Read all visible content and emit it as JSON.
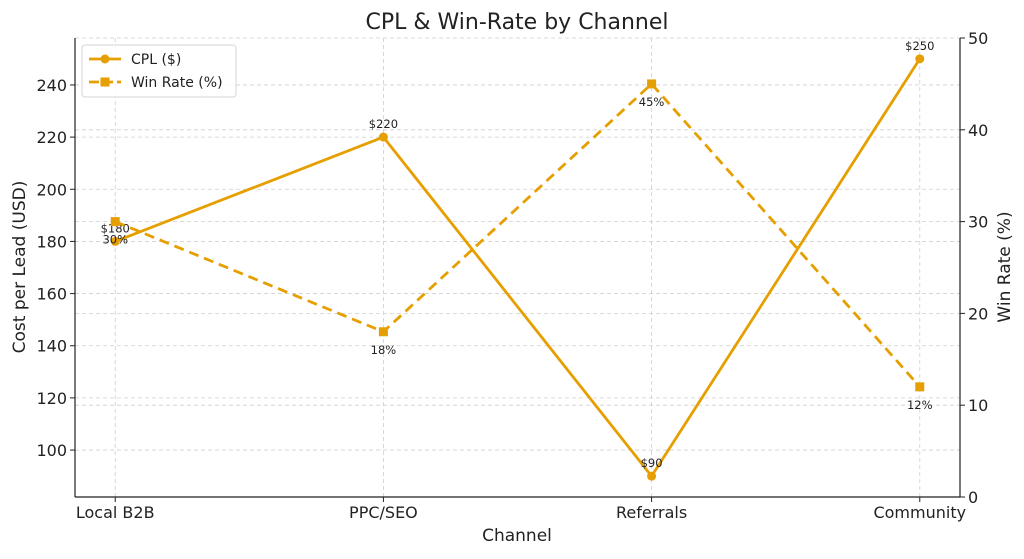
{
  "chart_data": {
    "type": "line",
    "title": "CPL & Win-Rate by Channel",
    "xlabel": "Channel",
    "ylabel": "Cost per Lead (USD)",
    "y2label": "Win Rate (%)",
    "categories": [
      "Local B2B",
      "PPC/SEO",
      "Referrals",
      "Community"
    ],
    "ylim": [
      82,
      258
    ],
    "y2lim": [
      0,
      50
    ],
    "yticks": [
      100,
      120,
      140,
      160,
      180,
      200,
      220,
      240
    ],
    "y2ticks": [
      0,
      10,
      20,
      30,
      40,
      50
    ],
    "grid": true,
    "legend_position": "top-left",
    "series": [
      {
        "name": "CPL ($)",
        "axis": "left",
        "style": "solid",
        "marker": "circle",
        "color": "#E69F00",
        "values": [
          180,
          220,
          90,
          250
        ],
        "labels": [
          "$180",
          "$220",
          "$90",
          "$250"
        ]
      },
      {
        "name": "Win Rate (%)",
        "axis": "right",
        "style": "dashed",
        "marker": "square",
        "color": "#E69F00",
        "values": [
          30,
          18,
          45,
          12
        ],
        "labels": [
          "30%",
          "18%",
          "45%",
          "12%"
        ]
      }
    ]
  }
}
